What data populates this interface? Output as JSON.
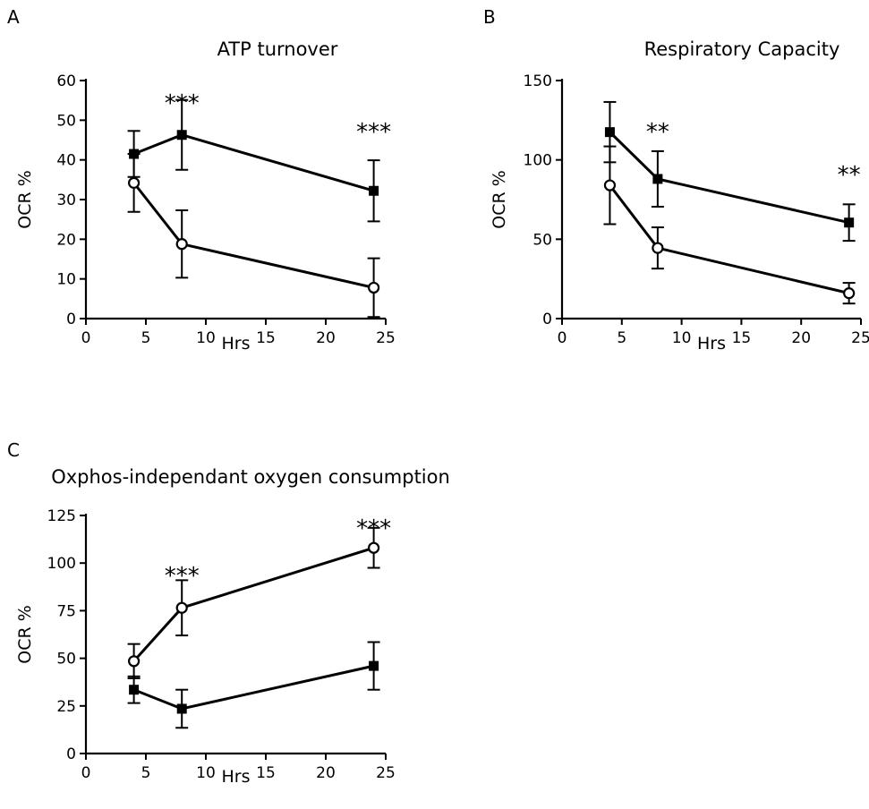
{
  "chart_data": [
    {
      "panel": "A",
      "type": "line",
      "title": "ATP turnover",
      "xlabel": "Hrs",
      "ylabel": "OCR %",
      "xlim": [
        0,
        25
      ],
      "ylim": [
        0,
        60
      ],
      "xticks": [
        0,
        5,
        10,
        15,
        20,
        25
      ],
      "yticks": [
        0,
        10,
        20,
        30,
        40,
        50,
        60
      ],
      "x": [
        4,
        8,
        24
      ],
      "series": [
        {
          "marker": "square",
          "values": [
            41.5,
            46.3,
            32.2
          ],
          "errors": [
            5.8,
            8.8,
            7.7
          ]
        },
        {
          "marker": "circle",
          "values": [
            34.2,
            18.8,
            7.8
          ],
          "errors": [
            7.3,
            8.5,
            7.4
          ]
        }
      ],
      "annotations": [
        {
          "x": 8,
          "text": "***"
        },
        {
          "x": 24,
          "text": "***"
        }
      ]
    },
    {
      "panel": "B",
      "type": "line",
      "title": "Respiratory Capacity",
      "xlabel": "Hrs",
      "ylabel": "OCR %",
      "xlim": [
        0,
        25
      ],
      "ylim": [
        0,
        150
      ],
      "xticks": [
        0,
        5,
        10,
        15,
        20,
        25
      ],
      "yticks": [
        0,
        50,
        100,
        150
      ],
      "x": [
        4,
        8,
        24
      ],
      "series": [
        {
          "marker": "square",
          "values": [
            117.5,
            88,
            60.5
          ],
          "errors": [
            19,
            17.5,
            11.5
          ]
        },
        {
          "marker": "circle",
          "values": [
            84,
            44.5,
            16
          ],
          "errors": [
            24.5,
            13,
            6.5
          ]
        }
      ],
      "annotations": [
        {
          "x": 8,
          "text": "**"
        },
        {
          "x": 24,
          "text": "**"
        }
      ]
    },
    {
      "panel": "C",
      "type": "line",
      "title": "Oxphos-independant oxygen consumption",
      "xlabel": "Hrs",
      "ylabel": "OCR %",
      "xlim": [
        0,
        25
      ],
      "ylim": [
        0,
        125
      ],
      "xticks": [
        0,
        5,
        10,
        15,
        20,
        25
      ],
      "yticks": [
        0,
        25,
        50,
        75,
        100,
        125
      ],
      "x": [
        4,
        8,
        24
      ],
      "series": [
        {
          "marker": "square",
          "values": [
            33.5,
            23.5,
            46
          ],
          "errors": [
            7,
            10,
            12.5
          ]
        },
        {
          "marker": "circle",
          "values": [
            48.5,
            76.5,
            108
          ],
          "errors": [
            9,
            14.5,
            10.5
          ]
        }
      ],
      "annotations": [
        {
          "x": 8,
          "text": "***"
        },
        {
          "x": 24,
          "text": "***"
        }
      ]
    }
  ]
}
